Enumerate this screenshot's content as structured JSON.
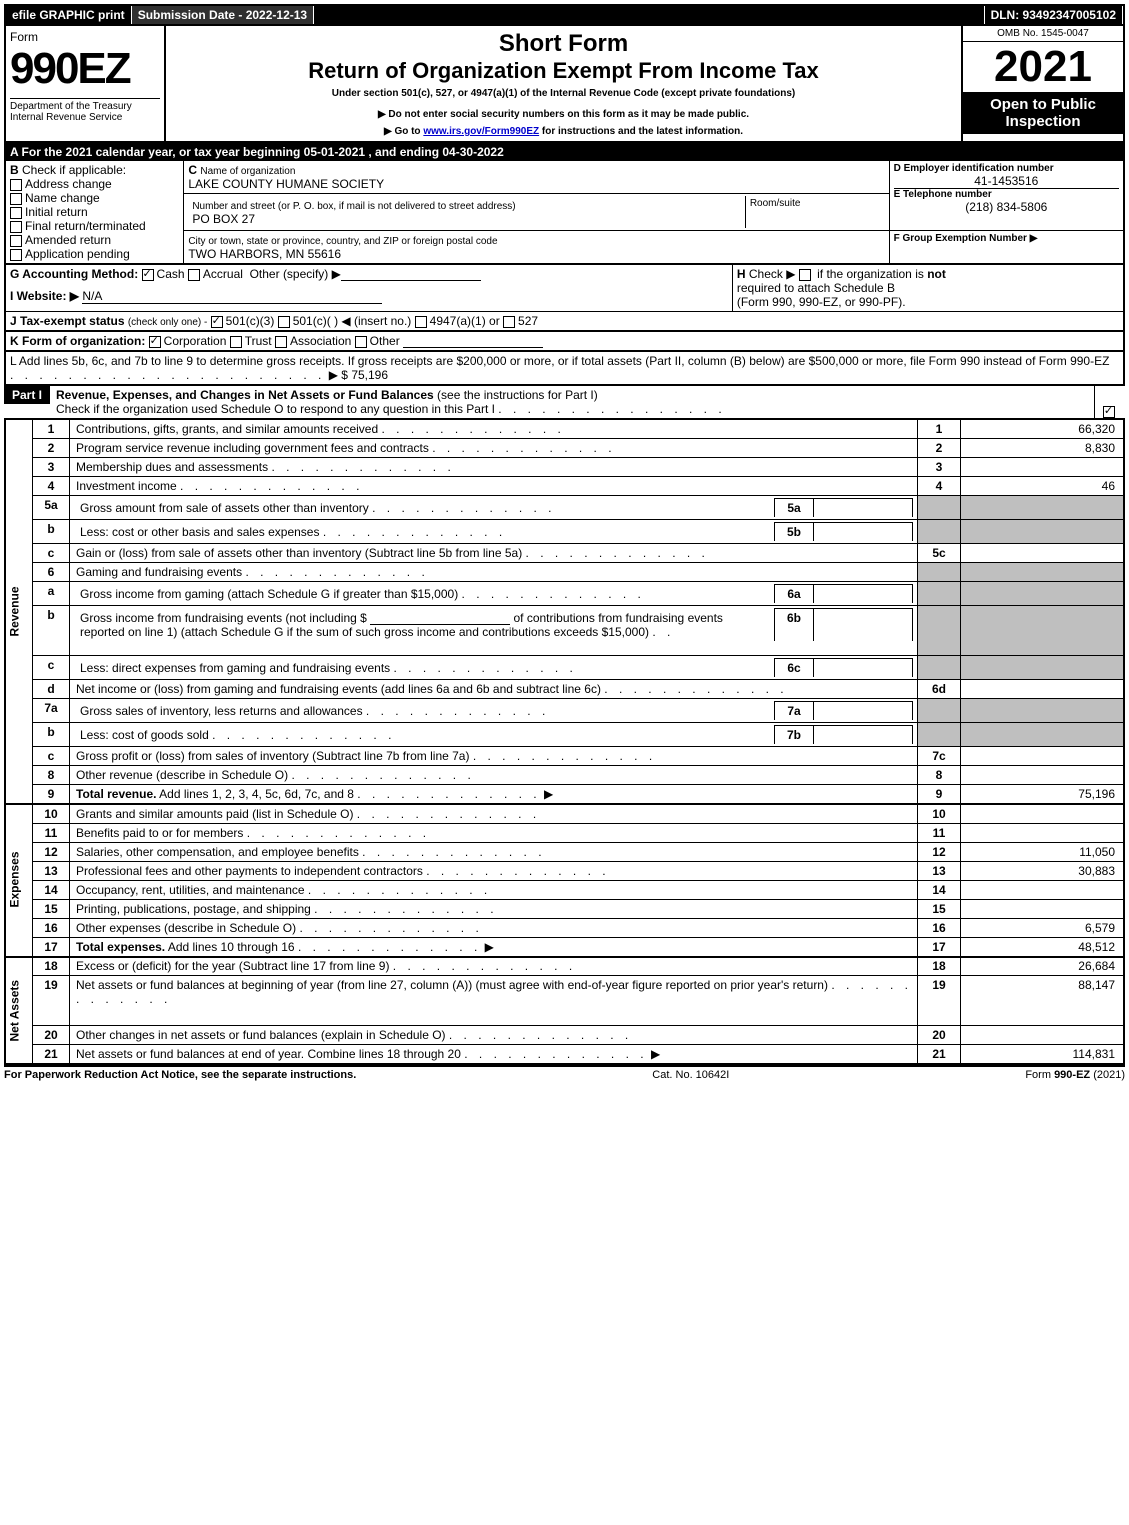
{
  "topbar": {
    "efile": "efile GRAPHIC print",
    "submission_label": "Submission Date - 2022-12-13",
    "dln_label": "DLN: 93492347005102"
  },
  "header": {
    "form_word": "Form",
    "form_number": "990EZ",
    "dept": "Department of the Treasury",
    "irs": "Internal Revenue Service",
    "short_form": "Short Form",
    "title": "Return of Organization Exempt From Income Tax",
    "subtitle": "Under section 501(c), 527, or 4947(a)(1) of the Internal Revenue Code (except private foundations)",
    "warn": "▶ Do not enter social security numbers on this form as it may be made public.",
    "goto_prefix": "▶ Go to ",
    "goto_link": "www.irs.gov/Form990EZ",
    "goto_suffix": " for instructions and the latest information.",
    "omb": "OMB No. 1545-0047",
    "year": "2021",
    "open": "Open to Public Inspection"
  },
  "sectionA": "A  For the 2021 calendar year, or tax year beginning 05-01-2021 , and ending 04-30-2022",
  "B": {
    "label": "B",
    "check_if": "Check if applicable:",
    "items": [
      "Address change",
      "Name change",
      "Initial return",
      "Final return/terminated",
      "Amended return",
      "Application pending"
    ]
  },
  "C": {
    "label": "C",
    "name_label": "Name of organization",
    "name": "LAKE COUNTY HUMANE SOCIETY",
    "street_label": "Number and street (or P. O. box, if mail is not delivered to street address)",
    "room_label": "Room/suite",
    "street": "PO BOX 27",
    "city_label": "City or town, state or province, country, and ZIP or foreign postal code",
    "city": "TWO HARBORS, MN  55616"
  },
  "D": {
    "label": "D Employer identification number",
    "value": "41-1453516"
  },
  "E": {
    "label": "E Telephone number",
    "value": "(218) 834-5806"
  },
  "F": {
    "label": "F Group Exemption Number   ▶"
  },
  "G": {
    "label": "G Accounting Method:",
    "cash": "Cash",
    "accrual": "Accrual",
    "other": "Other (specify) ▶"
  },
  "H": {
    "label": "H",
    "text1": "Check ▶",
    "text2": "if the organization is",
    "not": "not",
    "text3": "required to attach Schedule B",
    "text4": "(Form 990, 990-EZ, or 990-PF)."
  },
  "I": {
    "label": "I Website: ▶",
    "value": "N/A"
  },
  "J": {
    "label": "J Tax-exempt status",
    "note": "(check only one) -",
    "opt1": "501(c)(3)",
    "opt2": "501(c)(",
    "opt2b": ") ◀ (insert no.)",
    "opt3": "4947(a)(1) or",
    "opt4": "527"
  },
  "K": {
    "label": "K Form of organization:",
    "opts": [
      "Corporation",
      "Trust",
      "Association",
      "Other"
    ]
  },
  "L": {
    "text1": "L Add lines 5b, 6c, and 7b to line 9 to determine gross receipts. If gross receipts are $200,000 or more, or if total assets (Part II, column (B) below) are $500,000 or more, file Form 990 instead of Form 990-EZ",
    "arrow": "▶ $",
    "value": "75,196"
  },
  "part1": {
    "label": "Part I",
    "title": "Revenue, Expenses, and Changes in Net Assets or Fund Balances",
    "title_suffix": "(see the instructions for Part I)",
    "check_line": "Check if the organization used Schedule O to respond to any question in this Part I"
  },
  "sections": {
    "revenue": "Revenue",
    "expenses": "Expenses",
    "netassets": "Net Assets"
  },
  "lines": [
    {
      "n": "1",
      "desc": "Contributions, gifts, grants, and similar amounts received",
      "rn": "1",
      "val": "66,320"
    },
    {
      "n": "2",
      "desc": "Program service revenue including government fees and contracts",
      "rn": "2",
      "val": "8,830"
    },
    {
      "n": "3",
      "desc": "Membership dues and assessments",
      "rn": "3",
      "val": ""
    },
    {
      "n": "4",
      "desc": "Investment income",
      "rn": "4",
      "val": "46"
    },
    {
      "n": "5a",
      "desc": "Gross amount from sale of assets other than inventory",
      "mini": "5a",
      "gray": true
    },
    {
      "n": "b",
      "desc": "Less: cost or other basis and sales expenses",
      "mini": "5b",
      "gray": true
    },
    {
      "n": "c",
      "desc": "Gain or (loss) from sale of assets other than inventory (Subtract line 5b from line 5a)",
      "rn": "5c",
      "val": ""
    },
    {
      "n": "6",
      "desc": "Gaming and fundraising events",
      "gray": true,
      "noRn": true
    },
    {
      "n": "a",
      "desc": "Gross income from gaming (attach Schedule G if greater than $15,000)",
      "mini": "6a",
      "gray": true
    },
    {
      "n": "b",
      "desc_html": "Gross income from fundraising events (not including $ <span class='underline-blank'></span> of contributions from fundraising events reported on line 1) (attach Schedule G if the sum of such gross income and contributions exceeds $15,000)",
      "mini": "6b",
      "gray": true,
      "tall": true
    },
    {
      "n": "c",
      "desc": "Less: direct expenses from gaming and fundraising events",
      "mini": "6c",
      "gray": true
    },
    {
      "n": "d",
      "desc": "Net income or (loss) from gaming and fundraising events (add lines 6a and 6b and subtract line 6c)",
      "rn": "6d",
      "val": ""
    },
    {
      "n": "7a",
      "desc": "Gross sales of inventory, less returns and allowances",
      "mini": "7a",
      "gray": true
    },
    {
      "n": "b",
      "desc": "Less: cost of goods sold",
      "mini": "7b",
      "gray": true
    },
    {
      "n": "c",
      "desc": "Gross profit or (loss) from sales of inventory (Subtract line 7b from line 7a)",
      "rn": "7c",
      "val": ""
    },
    {
      "n": "8",
      "desc": "Other revenue (describe in Schedule O)",
      "rn": "8",
      "val": ""
    },
    {
      "n": "9",
      "desc": "<b>Total revenue.</b> Add lines 1, 2, 3, 4, 5c, 6d, 7c, and 8",
      "rn": "9",
      "val": "75,196",
      "arrow": true,
      "heavy": true
    }
  ],
  "expenses_lines": [
    {
      "n": "10",
      "desc": "Grants and similar amounts paid (list in Schedule O)",
      "rn": "10",
      "val": ""
    },
    {
      "n": "11",
      "desc": "Benefits paid to or for members",
      "rn": "11",
      "val": ""
    },
    {
      "n": "12",
      "desc": "Salaries, other compensation, and employee benefits",
      "rn": "12",
      "val": "11,050"
    },
    {
      "n": "13",
      "desc": "Professional fees and other payments to independent contractors",
      "rn": "13",
      "val": "30,883"
    },
    {
      "n": "14",
      "desc": "Occupancy, rent, utilities, and maintenance",
      "rn": "14",
      "val": ""
    },
    {
      "n": "15",
      "desc": "Printing, publications, postage, and shipping",
      "rn": "15",
      "val": ""
    },
    {
      "n": "16",
      "desc": "Other expenses (describe in Schedule O)",
      "rn": "16",
      "val": "6,579"
    },
    {
      "n": "17",
      "desc": "<b>Total expenses.</b> Add lines 10 through 16",
      "rn": "17",
      "val": "48,512",
      "arrow": true,
      "heavy": true
    }
  ],
  "netassets_lines": [
    {
      "n": "18",
      "desc": "Excess or (deficit) for the year (Subtract line 17 from line 9)",
      "rn": "18",
      "val": "26,684"
    },
    {
      "n": "19",
      "desc": "Net assets or fund balances at beginning of year (from line 27, column (A)) (must agree with end-of-year figure reported on prior year's return)",
      "rn": "19",
      "val": "88,147",
      "tall": true
    },
    {
      "n": "20",
      "desc": "Other changes in net assets or fund balances (explain in Schedule O)",
      "rn": "20",
      "val": ""
    },
    {
      "n": "21",
      "desc": "Net assets or fund balances at end of year. Combine lines 18 through 20",
      "rn": "21",
      "val": "114,831",
      "arrow": true
    }
  ],
  "footer": {
    "left": "For Paperwork Reduction Act Notice, see the separate instructions.",
    "center": "Cat. No. 10642I",
    "right_prefix": "Form ",
    "right_form": "990-EZ",
    "right_suffix": " (2021)"
  }
}
